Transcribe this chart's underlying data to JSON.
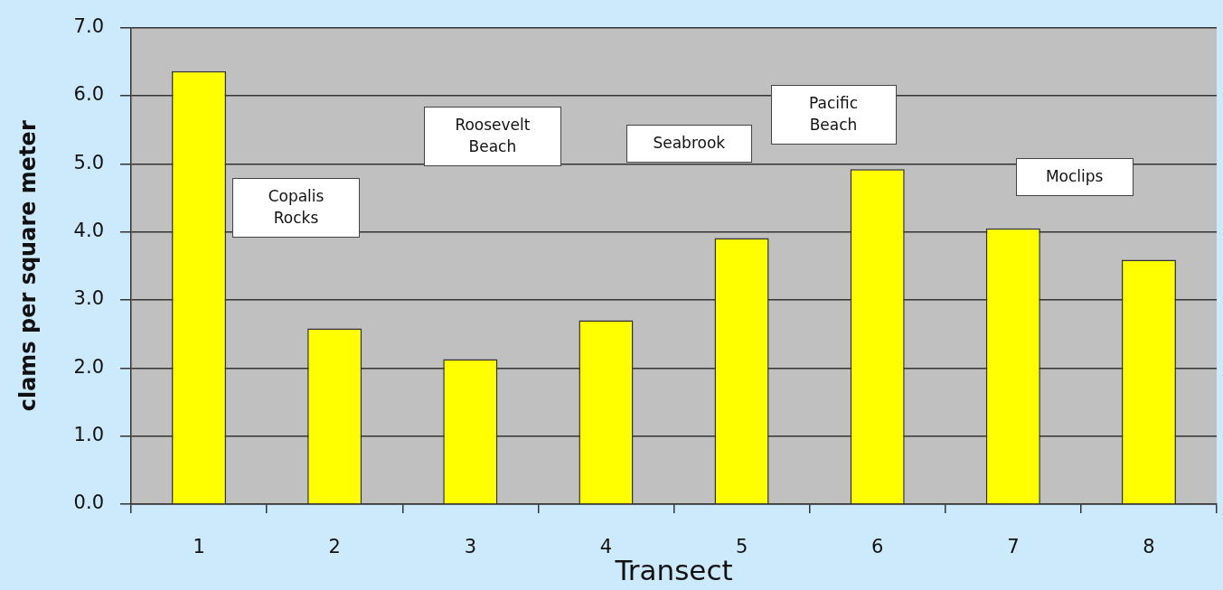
{
  "chart_data": {
    "type": "bar",
    "xlabel": "Transect",
    "ylabel": "clams per square meter",
    "categories": [
      "1",
      "2",
      "3",
      "4",
      "5",
      "6",
      "7",
      "8"
    ],
    "values": [
      6.36,
      2.58,
      2.13,
      2.7,
      3.91,
      4.92,
      4.05,
      3.59
    ],
    "color": "#ffff00",
    "ylim": [
      0,
      7
    ],
    "yticks": [
      {
        "value": 0,
        "label": "0.0"
      },
      {
        "value": 1,
        "label": "1.0"
      },
      {
        "value": 2,
        "label": "2.0"
      },
      {
        "value": 3,
        "label": "3.0"
      },
      {
        "value": 4,
        "label": "4.0"
      },
      {
        "value": 5,
        "label": "5.0"
      },
      {
        "value": 6,
        "label": "6.0"
      },
      {
        "value": 7,
        "label": "7.0"
      }
    ],
    "grid": "y",
    "annotations": [
      "Copalis Rocks",
      "Roosevelt Beach",
      "Seabrook",
      "Pacific Beach",
      "Moclips"
    ]
  }
}
